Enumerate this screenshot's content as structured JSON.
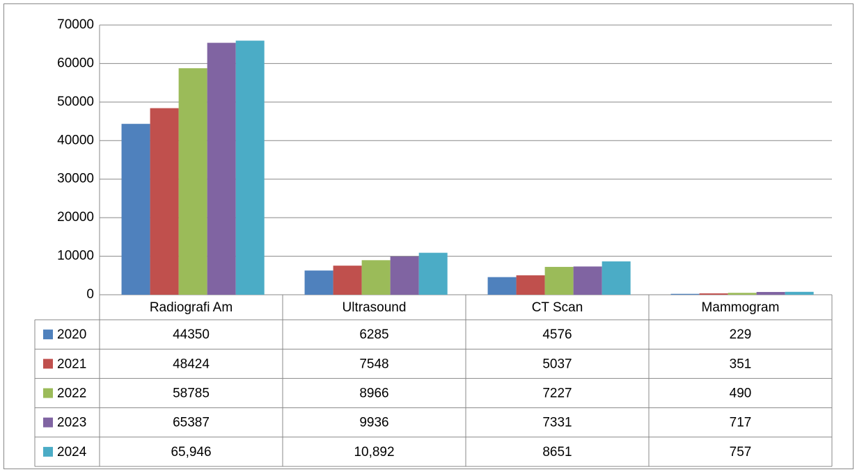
{
  "chart_data": {
    "type": "bar",
    "categories": [
      "Radiografi Am",
      "Ultrasound",
      "CT Scan",
      "Mammogram"
    ],
    "series": [
      {
        "name": "2020",
        "color": "#4f81bd",
        "values": [
          44350,
          6285,
          4576,
          229
        ]
      },
      {
        "name": "2021",
        "color": "#c0504d",
        "values": [
          48424,
          7548,
          5037,
          351
        ]
      },
      {
        "name": "2022",
        "color": "#9bbb59",
        "values": [
          58785,
          8966,
          7227,
          490
        ]
      },
      {
        "name": "2023",
        "color": "#8064a2",
        "values": [
          65387,
          9936,
          7331,
          717
        ]
      },
      {
        "name": "2024",
        "color": "#4bacc6",
        "values": [
          65946,
          10892,
          8651,
          757
        ],
        "value_labels": [
          "65,946",
          "10,892",
          "8651",
          "757"
        ]
      }
    ],
    "ylim": [
      0,
      70000
    ],
    "yticks": [
      0,
      10000,
      20000,
      30000,
      40000,
      50000,
      60000,
      70000
    ],
    "grid": true
  }
}
